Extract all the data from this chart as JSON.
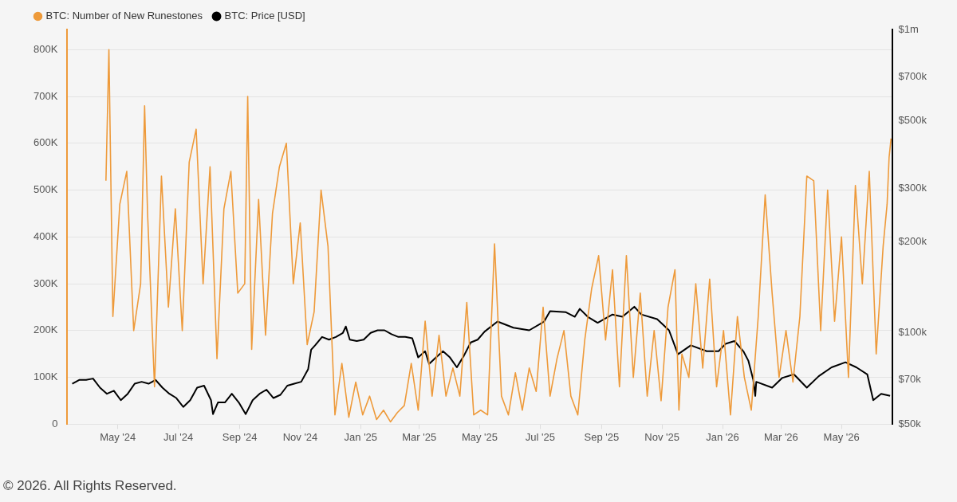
{
  "chart_data": {
    "type": "line",
    "legend": "top left",
    "grid": "y",
    "marker": "none",
    "line_style": "solid",
    "xlim": [
      "2024-03-11",
      "2026-06-21"
    ],
    "xticks": [
      {
        "value": "2024-05-01",
        "label": "May '24"
      },
      {
        "value": "2024-07-01",
        "label": "Jul '24"
      },
      {
        "value": "2024-09-01",
        "label": "Sep '24"
      },
      {
        "value": "2024-11-01",
        "label": "Nov '24"
      },
      {
        "value": "2025-01-01",
        "label": "Jan '25"
      },
      {
        "value": "2025-03-01",
        "label": "Mar '25"
      },
      {
        "value": "2025-05-01",
        "label": "May '25"
      },
      {
        "value": "2025-07-01",
        "label": "Jul '25"
      },
      {
        "value": "2025-09-01",
        "label": "Sep '25"
      },
      {
        "value": "2025-11-01",
        "label": "Nov '25"
      },
      {
        "value": "2026-01-01",
        "label": "Jan '26"
      },
      {
        "value": "2026-03-01",
        "label": "Mar '26"
      },
      {
        "value": "2026-05-01",
        "label": "May '26"
      }
    ],
    "ylim": [
      0,
      843000
    ],
    "yticks": [
      0,
      {
        "value": 100000,
        "label": "100K"
      },
      {
        "value": 200000,
        "label": "200K"
      },
      {
        "value": 300000,
        "label": "300K"
      },
      {
        "value": 400000,
        "label": "400K"
      },
      {
        "value": 500000,
        "label": "500K"
      },
      {
        "value": 600000,
        "label": "600K"
      },
      {
        "value": 700000,
        "label": "700K"
      },
      {
        "value": 800000,
        "label": "800K"
      }
    ],
    "log": "y2",
    "y2lim": [
      50000,
      1000000
    ],
    "y2ticks": [
      {
        "value": 50000,
        "label": "$50k"
      },
      {
        "value": 70000,
        "label": "$70k"
      },
      {
        "value": 100000,
        "label": "$100k"
      },
      {
        "value": 200000,
        "label": "$200k"
      },
      {
        "value": 300000,
        "label": "$300k"
      },
      {
        "value": 500000,
        "label": "$500k"
      },
      {
        "value": 700000,
        "label": "$700k"
      },
      {
        "value": 1000000,
        "label": "$1m"
      }
    ],
    "annotations": [
      "© 2026. All Rights Reserved."
    ],
    "series": [
      {
        "name": "BTC: Number of New Runestones",
        "color": "#ee9a3a",
        "x": [
          "2024-04-19",
          "2024-04-22",
          "2024-04-26",
          "2024-05-03",
          "2024-05-10",
          "2024-05-17",
          "2024-05-24",
          "2024-05-28",
          "2024-05-31",
          "2024-06-07",
          "2024-06-14",
          "2024-06-21",
          "2024-06-28",
          "2024-07-05",
          "2024-07-12",
          "2024-07-19",
          "2024-07-26",
          "2024-08-02",
          "2024-08-09",
          "2024-08-16",
          "2024-08-23",
          "2024-08-30",
          "2024-09-06",
          "2024-09-09",
          "2024-09-13",
          "2024-09-20",
          "2024-09-27",
          "2024-10-04",
          "2024-10-11",
          "2024-10-18",
          "2024-10-25",
          "2024-11-01",
          "2024-11-08",
          "2024-11-15",
          "2024-11-22",
          "2024-11-29",
          "2024-12-06",
          "2024-12-13",
          "2024-12-20",
          "2024-12-27",
          "2025-01-03",
          "2025-01-10",
          "2025-01-17",
          "2025-01-24",
          "2025-01-31",
          "2025-02-07",
          "2025-02-14",
          "2025-02-21",
          "2025-02-28",
          "2025-03-07",
          "2025-03-14",
          "2025-03-21",
          "2025-03-28",
          "2025-04-04",
          "2025-04-11",
          "2025-04-18",
          "2025-04-25",
          "2025-05-02",
          "2025-05-09",
          "2025-05-16",
          "2025-05-23",
          "2025-05-30",
          "2025-06-06",
          "2025-06-13",
          "2025-06-20",
          "2025-06-27",
          "2025-07-04",
          "2025-07-11",
          "2025-07-18",
          "2025-07-25",
          "2025-08-01",
          "2025-08-08",
          "2025-08-15",
          "2025-08-22",
          "2025-08-29",
          "2025-09-05",
          "2025-09-12",
          "2025-09-19",
          "2025-09-26",
          "2025-10-03",
          "2025-10-10",
          "2025-10-17",
          "2025-10-24",
          "2025-10-31",
          "2025-11-07",
          "2025-11-14",
          "2025-11-18",
          "2025-11-21",
          "2025-11-28",
          "2025-12-05",
          "2025-12-12",
          "2025-12-19",
          "2025-12-26",
          "2026-01-02",
          "2026-01-09",
          "2026-01-16",
          "2026-01-23",
          "2026-01-30",
          "2026-02-06",
          "2026-02-13",
          "2026-02-20",
          "2026-02-27",
          "2026-03-06",
          "2026-03-13",
          "2026-03-20",
          "2026-03-27",
          "2026-04-03",
          "2026-04-10",
          "2026-04-17",
          "2026-04-24",
          "2026-05-01",
          "2026-05-08",
          "2026-05-15",
          "2026-05-22",
          "2026-05-29",
          "2026-06-05",
          "2026-06-12",
          "2026-06-16",
          "2026-06-18",
          "2026-06-20"
        ],
        "values": [
          520000,
          800000,
          230000,
          470000,
          540000,
          200000,
          300000,
          680000,
          450000,
          80000,
          530000,
          250000,
          460000,
          200000,
          560000,
          630000,
          300000,
          550000,
          140000,
          460000,
          540000,
          280000,
          300000,
          700000,
          160000,
          480000,
          190000,
          450000,
          550000,
          600000,
          300000,
          430000,
          170000,
          240000,
          500000,
          380000,
          20000,
          130000,
          15000,
          90000,
          20000,
          60000,
          10000,
          30000,
          5000,
          25000,
          40000,
          130000,
          30000,
          220000,
          60000,
          190000,
          60000,
          120000,
          60000,
          260000,
          20000,
          30000,
          20000,
          385000,
          60000,
          20000,
          110000,
          30000,
          120000,
          70000,
          250000,
          60000,
          140000,
          200000,
          60000,
          20000,
          180000,
          290000,
          360000,
          180000,
          330000,
          80000,
          360000,
          100000,
          280000,
          60000,
          200000,
          50000,
          250000,
          330000,
          30000,
          150000,
          100000,
          300000,
          120000,
          310000,
          80000,
          200000,
          20000,
          230000,
          100000,
          30000,
          230000,
          490000,
          280000,
          100000,
          200000,
          90000,
          230000,
          530000,
          520000,
          200000,
          500000,
          220000,
          400000,
          100000,
          510000,
          300000,
          540000,
          150000,
          380000,
          470000,
          570000,
          610000
        ]
      },
      {
        "name": "BTC: Price [USD]",
        "color": "#000000",
        "axis": "y2",
        "x": [
          "2024-03-16",
          "2024-03-23",
          "2024-03-30",
          "2024-04-06",
          "2024-04-13",
          "2024-04-20",
          "2024-04-27",
          "2024-05-04",
          "2024-05-11",
          "2024-05-18",
          "2024-05-25",
          "2024-06-01",
          "2024-06-08",
          "2024-06-15",
          "2024-06-22",
          "2024-06-29",
          "2024-07-06",
          "2024-07-13",
          "2024-07-20",
          "2024-07-27",
          "2024-08-03",
          "2024-08-05",
          "2024-08-10",
          "2024-08-17",
          "2024-08-24",
          "2024-08-31",
          "2024-09-07",
          "2024-09-14",
          "2024-09-21",
          "2024-09-28",
          "2024-10-05",
          "2024-10-12",
          "2024-10-19",
          "2024-10-26",
          "2024-11-02",
          "2024-11-09",
          "2024-11-12",
          "2024-11-16",
          "2024-11-23",
          "2024-11-30",
          "2024-12-07",
          "2024-12-14",
          "2024-12-17",
          "2024-12-21",
          "2024-12-28",
          "2025-01-04",
          "2025-01-11",
          "2025-01-18",
          "2025-01-25",
          "2025-02-01",
          "2025-02-08",
          "2025-02-15",
          "2025-02-22",
          "2025-02-28",
          "2025-03-07",
          "2025-03-11",
          "2025-03-18",
          "2025-03-25",
          "2025-04-01",
          "2025-04-08",
          "2025-04-15",
          "2025-04-22",
          "2025-04-29",
          "2025-05-06",
          "2025-05-19",
          "2025-06-04",
          "2025-06-20",
          "2025-07-05",
          "2025-07-11",
          "2025-07-27",
          "2025-08-05",
          "2025-08-10",
          "2025-08-18",
          "2025-08-28",
          "2025-09-12",
          "2025-09-22",
          "2025-10-04",
          "2025-10-11",
          "2025-10-27",
          "2025-11-08",
          "2025-11-17",
          "2025-11-30",
          "2025-12-16",
          "2025-12-28",
          "2026-01-04",
          "2026-01-13",
          "2026-01-22",
          "2026-01-27",
          "2026-02-01",
          "2026-02-03",
          "2026-02-04",
          "2026-02-20",
          "2026-03-02",
          "2026-03-14",
          "2026-03-27",
          "2026-04-08",
          "2026-04-21",
          "2026-05-05",
          "2026-05-16",
          "2026-05-27",
          "2026-06-02",
          "2026-06-10",
          "2026-06-19"
        ],
        "values": [
          68000,
          70000,
          70000,
          70700,
          66000,
          63000,
          64500,
          60000,
          63000,
          68000,
          69000,
          68000,
          70000,
          66000,
          63000,
          61000,
          57000,
          60000,
          66000,
          67000,
          60000,
          54000,
          59000,
          59000,
          63000,
          59000,
          54000,
          60000,
          63000,
          65000,
          61000,
          62500,
          67000,
          68000,
          69000,
          76000,
          88000,
          91000,
          97000,
          95000,
          97000,
          100000,
          105000,
          95000,
          94000,
          95000,
          100000,
          102000,
          102000,
          99000,
          97000,
          97000,
          96000,
          83000,
          87000,
          79000,
          83000,
          87000,
          83000,
          77000,
          84000,
          93000,
          95000,
          101000,
          109000,
          104000,
          102000,
          109000,
          118000,
          117000,
          113000,
          120000,
          113000,
          108000,
          115000,
          113000,
          122000,
          115000,
          111000,
          102000,
          85000,
          91000,
          87000,
          87000,
          92000,
          94000,
          87000,
          81000,
          70000,
          62000,
          69000,
          66000,
          71000,
          73000,
          66000,
          72000,
          77000,
          80000,
          77000,
          73000,
          60000,
          63000,
          62000
        ]
      }
    ]
  }
}
